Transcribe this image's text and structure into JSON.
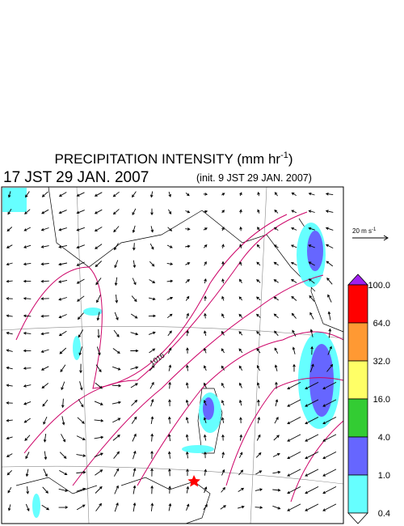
{
  "header": {
    "title": "PRECIPITATION INTENSITY (mm hr",
    "title_exponent": "-1",
    "title_close": ")",
    "valid_time": "17 JST 29 JAN. 2007",
    "init_time": "(init. 9 JST 29 JAN. 2007)"
  },
  "map": {
    "contour_label": "1016",
    "reference_vector": {
      "label": "20 m s",
      "exponent": "-1"
    }
  },
  "colorbar": {
    "levels": [
      "100.0",
      "64.0",
      "32.0",
      "16.0",
      "4.0",
      "1.0",
      "0.4"
    ],
    "colors": [
      "#a020f0",
      "#ff0000",
      "#ff9933",
      "#ffff66",
      "#33cc33",
      "#6666ff",
      "#66ffff",
      "#ffffff"
    ]
  }
}
